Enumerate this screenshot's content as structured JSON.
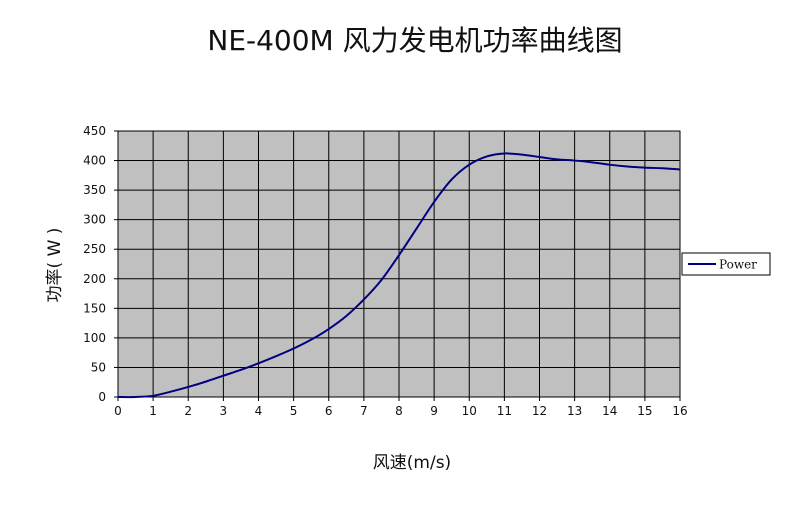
{
  "chart_data": {
    "type": "line",
    "title": "NE-400M 风力发电机功率曲线图",
    "xlabel": "风速(m/s)",
    "ylabel": "功率( W )",
    "xlim": [
      0,
      16
    ],
    "ylim": [
      0,
      450
    ],
    "xticks": [
      0,
      1,
      2,
      3,
      4,
      5,
      6,
      7,
      8,
      9,
      10,
      11,
      12,
      13,
      14,
      15,
      16
    ],
    "yticks": [
      0,
      50,
      100,
      150,
      200,
      250,
      300,
      350,
      400,
      450
    ],
    "grid": true,
    "legend_position": "right",
    "plot_background": "#c0c0c0",
    "series": [
      {
        "name": "Power",
        "color": "#000080",
        "x": [
          0,
          0.5,
          1,
          1.5,
          2,
          2.5,
          3,
          3.5,
          4,
          4.5,
          5,
          5.5,
          6,
          6.5,
          7,
          7.5,
          8,
          8.5,
          9,
          9.5,
          10,
          10.5,
          11,
          11.5,
          12,
          12.5,
          13,
          13.5,
          14,
          14.5,
          15,
          15.5,
          16
        ],
        "y": [
          0,
          0,
          2,
          9,
          17,
          26,
          36,
          46,
          57,
          69,
          82,
          97,
          115,
          137,
          165,
          198,
          240,
          285,
          330,
          368,
          393,
          407,
          412,
          410,
          406,
          402,
          400,
          397,
          393,
          390,
          388,
          387,
          385
        ]
      }
    ]
  }
}
